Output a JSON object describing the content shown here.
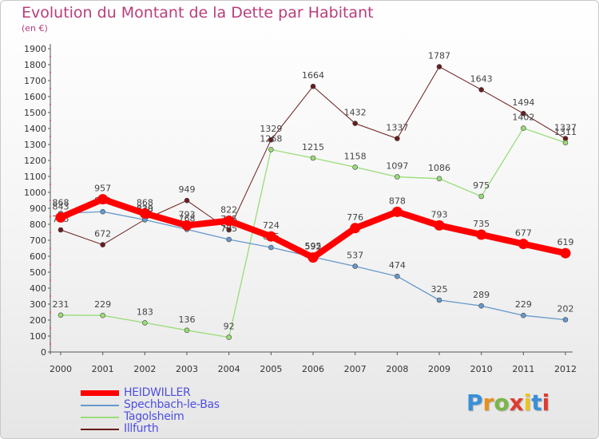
{
  "title": "Evolution du Montant de la Dette par Habitant",
  "unit": "(en €)",
  "logo": {
    "letters": [
      "P",
      "r",
      "o",
      "x",
      "i",
      "t",
      "i"
    ],
    "colors": [
      "#3a8fd8",
      "#e8901c",
      "#7ab648",
      "#e03c2e",
      "#f0c419",
      "#3a8fd8",
      "#e03c2e"
    ]
  },
  "chart_data": {
    "type": "line",
    "x": [
      "2000",
      "2001",
      "2002",
      "2003",
      "2004",
      "2005",
      "2006",
      "2007",
      "2008",
      "2009",
      "2010",
      "2011",
      "2012"
    ],
    "ylim": [
      0,
      1900
    ],
    "yticks": [
      0,
      100,
      200,
      300,
      400,
      500,
      600,
      700,
      800,
      900,
      1000,
      1100,
      1200,
      1300,
      1400,
      1500,
      1600,
      1700,
      1800,
      1900
    ],
    "grid": false,
    "legend_position": "bottom",
    "series": [
      {
        "name": "Illfurth",
        "color": "#6b1b1b",
        "width": 1,
        "values": [
          765,
          672,
          830,
          949,
          765,
          1329,
          1664,
          1432,
          1337,
          1787,
          1643,
          1494,
          1337
        ]
      },
      {
        "name": "Tagolsheim",
        "color": "#99dd77",
        "width": 1.3,
        "values": [
          231,
          229,
          183,
          136,
          92,
          1268,
          1215,
          1158,
          1097,
          1086,
          975,
          1402,
          1311
        ]
      },
      {
        "name": "Spechbach-le-Bas",
        "color": "#6699cc",
        "width": 1.3,
        "values": [
          868,
          879,
          828,
          768,
          705,
          655,
          595,
          537,
          474,
          325,
          289,
          229,
          202
        ]
      },
      {
        "name": "HEIDWILLER",
        "color": "#ff0000",
        "width": 8,
        "values": [
          843,
          957,
          868,
          793,
          822,
          724,
          592,
          776,
          878,
          793,
          735,
          677,
          619
        ]
      }
    ]
  },
  "legend": [
    "HEIDWILLER",
    "Spechbach-le-Bas",
    "Tagolsheim",
    "Illfurth"
  ]
}
